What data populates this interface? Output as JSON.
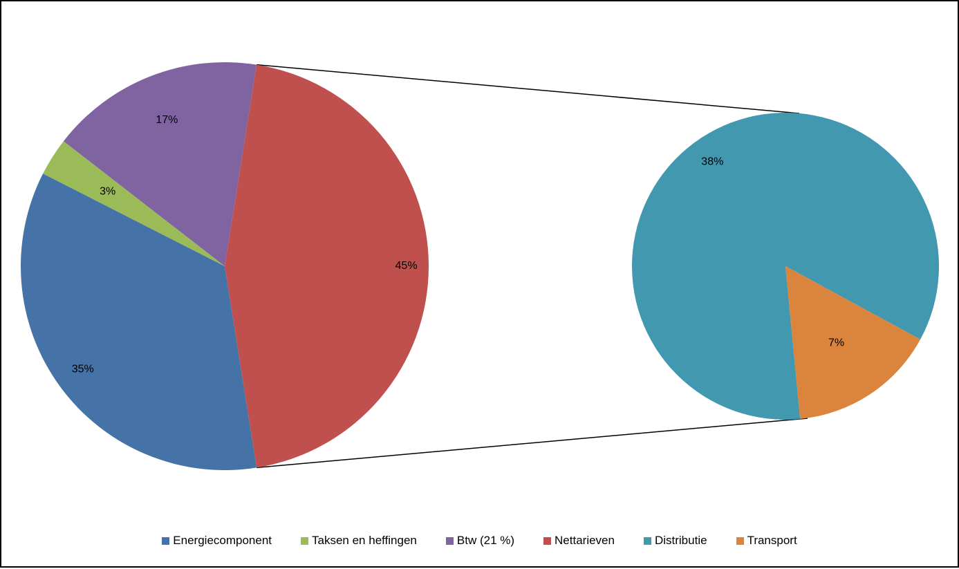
{
  "chart_data": {
    "type": "bar-of-pie",
    "title": "",
    "main_pie": {
      "slices": [
        {
          "name": "Energiecomponent",
          "value": 35,
          "label": "35%",
          "color": "#4572A7"
        },
        {
          "name": "Taksen en heffingen",
          "value": 3,
          "label": "3%",
          "color": "#9BBB59"
        },
        {
          "name": "Btw (21 %)",
          "value": 17,
          "label": "17%",
          "color": "#8064A2"
        },
        {
          "name": "Nettarieven",
          "value": 45,
          "label": "45%",
          "color": "#C0504D",
          "expanded": true
        }
      ]
    },
    "secondary_pie": {
      "parent": "Nettarieven",
      "slices": [
        {
          "name": "Distributie",
          "value": 38,
          "label": "38%",
          "color": "#4198AF"
        },
        {
          "name": "Transport",
          "value": 7,
          "label": "7%",
          "color": "#DB843D"
        }
      ]
    },
    "legend": {
      "position": "bottom",
      "entries": [
        {
          "name": "Energiecomponent",
          "color": "#4572A7"
        },
        {
          "name": "Taksen en heffingen",
          "color": "#9BBB59"
        },
        {
          "name": "Btw (21 %)",
          "color": "#8064A2"
        },
        {
          "name": "Nettarieven",
          "color": "#C0504D"
        },
        {
          "name": "Distributie",
          "color": "#4198AF"
        },
        {
          "name": "Transport",
          "color": "#DB843D"
        }
      ]
    }
  }
}
